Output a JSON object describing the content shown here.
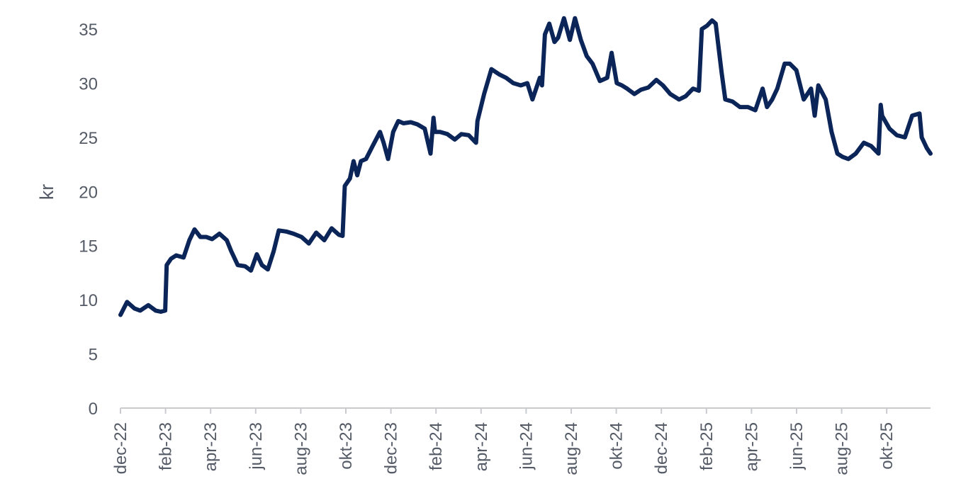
{
  "chart_data": {
    "type": "line",
    "title": "",
    "xlabel": "",
    "ylabel": "kr",
    "ylim": [
      0,
      35
    ],
    "y_ticks": [
      0,
      5,
      10,
      15,
      20,
      25,
      30,
      35
    ],
    "x_tick_labels": [
      "dec-22",
      "feb-23",
      "apr-23",
      "jun-23",
      "aug-23",
      "okt-23",
      "dec-23",
      "feb-24",
      "apr-24",
      "jun-24",
      "aug-24",
      "okt-24",
      "dec-24",
      "feb-25",
      "apr-25",
      "jun-25",
      "aug-25",
      "okt-25"
    ],
    "grid": false,
    "legend": "none",
    "line_color": "#0b2559",
    "x": [
      "2022-12-01",
      "2022-12-10",
      "2022-12-20",
      "2022-12-28",
      "2023-01-08",
      "2023-01-18",
      "2023-01-25",
      "2023-01-31",
      "2023-02-02",
      "2023-02-08",
      "2023-02-15",
      "2023-02-25",
      "2023-03-05",
      "2023-03-12",
      "2023-03-20",
      "2023-03-28",
      "2023-04-05",
      "2023-04-15",
      "2023-04-25",
      "2023-05-01",
      "2023-05-10",
      "2023-05-20",
      "2023-05-28",
      "2023-06-05",
      "2023-06-12",
      "2023-06-20",
      "2023-06-28",
      "2023-07-05",
      "2023-07-15",
      "2023-07-25",
      "2023-08-05",
      "2023-08-15",
      "2023-08-25",
      "2023-09-05",
      "2023-09-15",
      "2023-09-25",
      "2023-09-30",
      "2023-10-03",
      "2023-10-10",
      "2023-10-15",
      "2023-10-20",
      "2023-10-25",
      "2023-11-01",
      "2023-11-10",
      "2023-11-20",
      "2023-11-25",
      "2023-12-01",
      "2023-12-08",
      "2023-12-15",
      "2023-12-22",
      "2024-01-01",
      "2024-01-10",
      "2024-01-20",
      "2024-01-28",
      "2024-02-01",
      "2024-02-03",
      "2024-02-10",
      "2024-02-20",
      "2024-03-01",
      "2024-03-10",
      "2024-03-20",
      "2024-03-30",
      "2024-04-01",
      "2024-04-10",
      "2024-04-20",
      "2024-05-01",
      "2024-05-10",
      "2024-05-20",
      "2024-05-30",
      "2024-06-08",
      "2024-06-15",
      "2024-06-25",
      "2024-06-28",
      "2024-07-02",
      "2024-07-08",
      "2024-07-15",
      "2024-07-20",
      "2024-07-28",
      "2024-08-05",
      "2024-08-12",
      "2024-08-20",
      "2024-08-28",
      "2024-09-05",
      "2024-09-15",
      "2024-09-25",
      "2024-10-01",
      "2024-10-08",
      "2024-10-15",
      "2024-10-22",
      "2024-11-01",
      "2024-11-10",
      "2024-11-20",
      "2024-12-01",
      "2024-12-10",
      "2024-12-20",
      "2025-01-01",
      "2025-01-10",
      "2025-01-20",
      "2025-01-28",
      "2025-02-01",
      "2025-02-08",
      "2025-02-15",
      "2025-02-20",
      "2025-02-28",
      "2025-03-05",
      "2025-03-15",
      "2025-03-25",
      "2025-04-05",
      "2025-04-15",
      "2025-04-25",
      "2025-05-01",
      "2025-05-08",
      "2025-05-15",
      "2025-05-25",
      "2025-06-01",
      "2025-06-10",
      "2025-06-20",
      "2025-06-30",
      "2025-07-05",
      "2025-07-10",
      "2025-07-20",
      "2025-07-28",
      "2025-08-05",
      "2025-08-12",
      "2025-08-20",
      "2025-08-30",
      "2025-09-10",
      "2025-09-20",
      "2025-09-30",
      "2025-10-03",
      "2025-10-05",
      "2025-10-15",
      "2025-10-25",
      "2025-11-05",
      "2025-11-15",
      "2025-11-25",
      "2025-11-28",
      "2025-12-05",
      "2025-12-10"
    ],
    "values": [
      8.6,
      9.8,
      9.2,
      9.0,
      9.5,
      9.0,
      8.9,
      9.0,
      13.2,
      13.8,
      14.1,
      13.9,
      15.5,
      16.5,
      15.8,
      15.8,
      15.6,
      16.1,
      15.5,
      14.5,
      13.2,
      13.1,
      12.7,
      14.2,
      13.2,
      12.8,
      14.5,
      16.4,
      16.3,
      16.1,
      15.8,
      15.2,
      16.2,
      15.5,
      16.6,
      16.0,
      15.9,
      20.5,
      21.2,
      22.8,
      21.5,
      22.8,
      23.0,
      24.2,
      25.5,
      24.5,
      23.0,
      25.5,
      26.5,
      26.3,
      26.4,
      26.2,
      25.8,
      23.5,
      26.8,
      25.5,
      25.5,
      25.3,
      24.8,
      25.3,
      25.2,
      24.5,
      26.5,
      29.0,
      31.3,
      30.8,
      30.5,
      30.0,
      29.8,
      30.0,
      28.5,
      30.5,
      29.8,
      34.5,
      35.5,
      33.8,
      34.2,
      36.0,
      34.0,
      36.0,
      34.0,
      32.5,
      31.8,
      30.2,
      30.5,
      32.8,
      30.0,
      29.8,
      29.5,
      29.0,
      29.4,
      29.6,
      30.3,
      29.8,
      29.0,
      28.5,
      28.8,
      29.5,
      29.3,
      35.0,
      35.3,
      35.8,
      35.5,
      31.0,
      28.5,
      28.3,
      27.8,
      27.8,
      27.5,
      29.5,
      27.8,
      28.5,
      29.5,
      31.8,
      31.8,
      31.2,
      28.5,
      29.5,
      27.0,
      29.8,
      28.5,
      25.5,
      23.5,
      23.2,
      23.0,
      23.5,
      24.5,
      24.2,
      23.5,
      28.0,
      27.0,
      25.8,
      25.2,
      25.0,
      27.0,
      27.2,
      25.0,
      24.0,
      23.5
    ]
  }
}
